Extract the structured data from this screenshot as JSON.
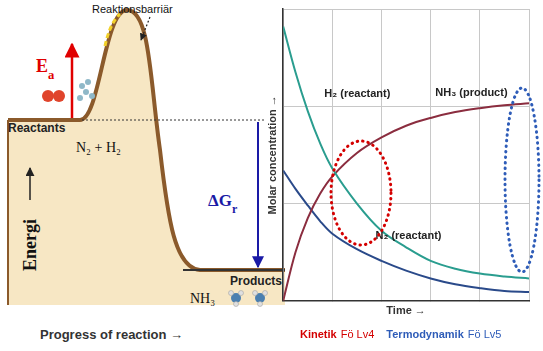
{
  "energy_diagram": {
    "y_axis_label": "Energi",
    "x_axis_label": "Progress of reaction →",
    "barrier_label": "Reaktionsbarriär",
    "activation_energy": {
      "symbol": "E",
      "subscript": "a",
      "color": "#e00000"
    },
    "reactants": {
      "label": "Reactants",
      "formula": "N₂ + H₂"
    },
    "products": {
      "label": "Products",
      "formula": "NH₃"
    },
    "reaction_energy": {
      "symbol": "ΔG",
      "subscript": "r",
      "color": "#1a1aa6"
    }
  },
  "chart_data": {
    "type": "line",
    "x_label": "Time →",
    "y_label": "Molar concentration →",
    "x": [
      0,
      0.25,
      0.5,
      0.75,
      1,
      1.5,
      2,
      2.5,
      3,
      3.5,
      4,
      4.5,
      5
    ],
    "series": [
      {
        "name": "H₂ (reactant)",
        "color": "#2a9d8f",
        "values": [
          2.82,
          2.35,
          1.95,
          1.62,
          1.36,
          1.0,
          0.72,
          0.55,
          0.41,
          0.33,
          0.28,
          0.25,
          0.23
        ]
      },
      {
        "name": "NH₃ (product)",
        "color": "#8b2d3f",
        "values": [
          0,
          0.5,
          0.85,
          1.1,
          1.28,
          1.52,
          1.68,
          1.8,
          1.88,
          1.94,
          1.98,
          2.01,
          2.03
        ]
      },
      {
        "name": "N₂ (reactant)",
        "color": "#2a4a8a",
        "values": [
          1.34,
          1.15,
          0.98,
          0.82,
          0.69,
          0.53,
          0.41,
          0.31,
          0.23,
          0.17,
          0.13,
          0.1,
          0.09
        ]
      }
    ],
    "xlim": [
      0,
      5
    ],
    "xticks": [
      0,
      1,
      2,
      3,
      4,
      5
    ],
    "ylim": [
      0,
      3
    ],
    "yticks": [
      0,
      1,
      2,
      3
    ],
    "grid": true,
    "tick_labels": false
  },
  "captions": [
    {
      "title": "Kinetik",
      "lecture": "Fö Lv4",
      "color": "#d40000"
    },
    {
      "title": "Termodynamik",
      "lecture": "Fö Lv5",
      "color": "#2e5cb8"
    }
  ]
}
